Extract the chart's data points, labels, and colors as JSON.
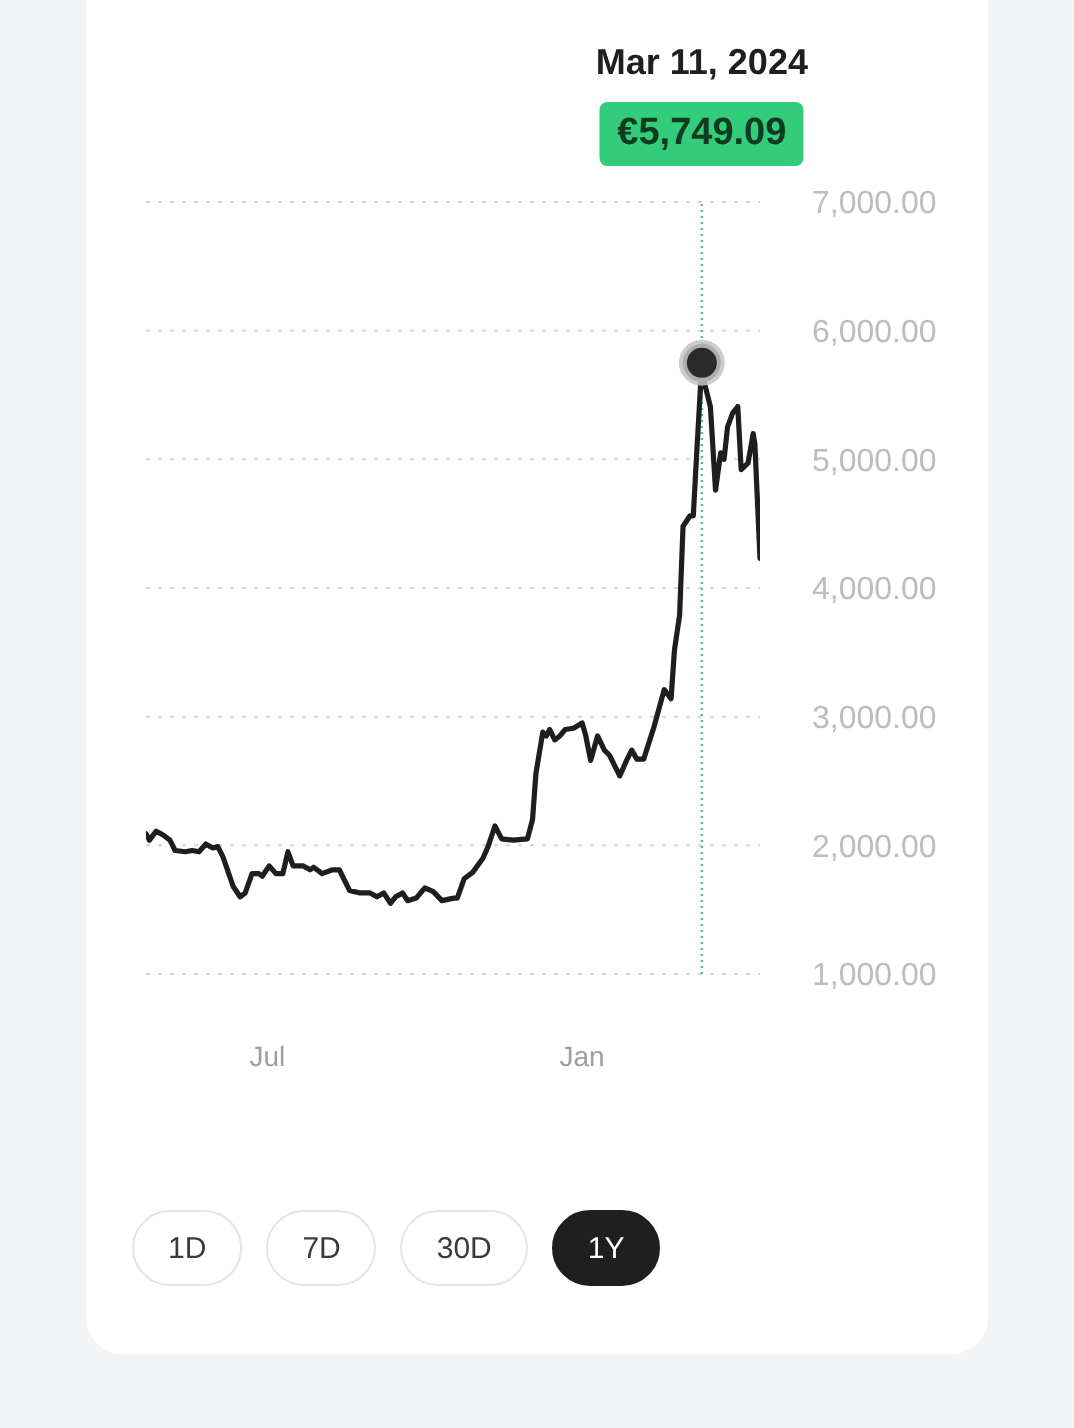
{
  "chart_data": {
    "type": "line",
    "series": [
      {
        "color": "#1e1e1e",
        "x": [
          "2023-04-21",
          "2023-04-23",
          "2023-04-27",
          "2023-05-01",
          "2023-05-05",
          "2023-05-08",
          "2023-05-14",
          "2023-05-18",
          "2023-05-22",
          "2023-05-26",
          "2023-05-30",
          "2023-06-02",
          "2023-06-05",
          "2023-06-11",
          "2023-06-15",
          "2023-06-18",
          "2023-06-22",
          "2023-06-26",
          "2023-06-28",
          "2023-07-02",
          "2023-07-06",
          "2023-07-10",
          "2023-07-13",
          "2023-07-16",
          "2023-07-22",
          "2023-07-26",
          "2023-07-28",
          "2023-08-02",
          "2023-08-08",
          "2023-08-12",
          "2023-08-18",
          "2023-08-24",
          "2023-08-30",
          "2023-09-03",
          "2023-09-07",
          "2023-09-11",
          "2023-09-14",
          "2023-09-18",
          "2023-09-21",
          "2023-09-26",
          "2023-10-01",
          "2023-10-06",
          "2023-10-11",
          "2023-10-18",
          "2023-10-20",
          "2023-10-24",
          "2023-10-29",
          "2023-11-04",
          "2023-11-07",
          "2023-11-11",
          "2023-11-15",
          "2023-11-22",
          "2023-11-30",
          "2023-12-03",
          "2023-12-05",
          "2023-12-09",
          "2023-12-11",
          "2023-12-13",
          "2023-12-16",
          "2023-12-19",
          "2023-12-22",
          "2023-12-27",
          "2024-01-01",
          "2024-01-03",
          "2024-01-06",
          "2024-01-10",
          "2024-01-14",
          "2024-01-17",
          "2024-01-23",
          "2024-01-27",
          "2024-01-30",
          "2024-02-02",
          "2024-02-06",
          "2024-02-12",
          "2024-02-18",
          "2024-02-22",
          "2024-02-24",
          "2024-02-27",
          "2024-02-29",
          "2024-03-04",
          "2024-03-06",
          "2024-03-08",
          "2024-03-11",
          "2024-03-12",
          "2024-03-16",
          "2024-03-19",
          "2024-03-22",
          "2024-03-24",
          "2024-03-26",
          "2024-03-29",
          "2024-04-01",
          "2024-04-03",
          "2024-04-07",
          "2024-04-10",
          "2024-04-11",
          "2024-04-14"
        ],
        "values": [
          2090,
          2040,
          2110,
          2080,
          2040,
          1960,
          1950,
          1960,
          1950,
          2010,
          1980,
          1990,
          1910,
          1680,
          1600,
          1630,
          1780,
          1780,
          1760,
          1840,
          1780,
          1780,
          1950,
          1840,
          1840,
          1810,
          1830,
          1780,
          1810,
          1810,
          1650,
          1630,
          1630,
          1600,
          1630,
          1550,
          1600,
          1630,
          1570,
          1590,
          1670,
          1640,
          1570,
          1590,
          1590,
          1740,
          1790,
          1900,
          1990,
          2150,
          2050,
          2040,
          2050,
          2200,
          2560,
          2880,
          2850,
          2900,
          2820,
          2850,
          2900,
          2910,
          2950,
          2860,
          2660,
          2850,
          2740,
          2700,
          2540,
          2660,
          2740,
          2670,
          2670,
          2920,
          3210,
          3140,
          3520,
          3790,
          4480,
          4560,
          4560,
          5050,
          5750,
          5620,
          5410,
          4760,
          5050,
          5000,
          5250,
          5360,
          5410,
          4920,
          4970,
          5200,
          5120,
          4230
        ]
      },
      {
        "type": "scatter",
        "color": "#2a2a2a",
        "marker": "circle",
        "x": [
          "2024-03-11"
        ],
        "values": [
          5750
        ]
      }
    ],
    "xlim": [
      "2023-04-21",
      "2024-04-14"
    ],
    "xticks": [
      {
        "value": "2023-07-01",
        "label": "Jul"
      },
      {
        "value": "2024-01-01",
        "label": "Jan"
      }
    ],
    "ylim": [
      1000,
      7000
    ],
    "yticks": [
      {
        "value": 1000,
        "label": "1,000.00"
      },
      {
        "value": 2000,
        "label": "2,000.00"
      },
      {
        "value": 3000,
        "label": "3,000.00"
      },
      {
        "value": 4000,
        "label": "4,000.00"
      },
      {
        "value": 5000,
        "label": "5,000.00"
      },
      {
        "value": 6000,
        "label": "6,000.00"
      },
      {
        "value": 7000,
        "label": "7,000.00"
      }
    ],
    "grid": "y",
    "ref_lines": [
      {
        "axis": "x",
        "value": "2024-03-11",
        "color": "#4fbf8f",
        "line_style": "dotted"
      }
    ],
    "annotations": [
      "Mar 11, 2024",
      "€5,749.09",
      "1D",
      "7D",
      "30D",
      "1Y"
    ]
  }
}
